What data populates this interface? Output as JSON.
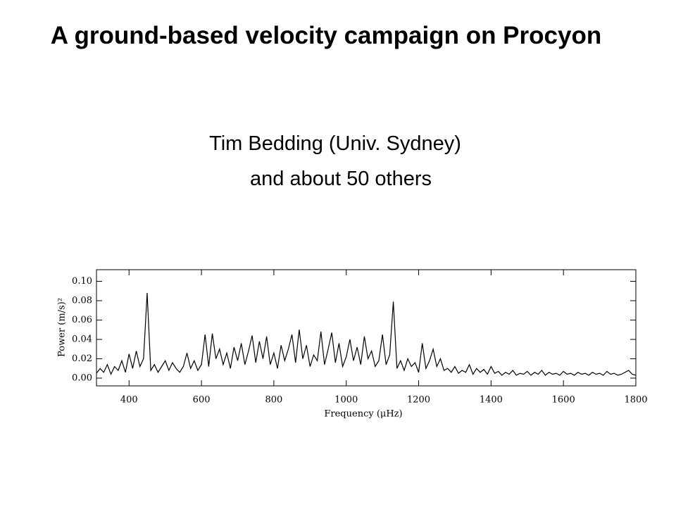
{
  "title": "A ground-based velocity campaign on Procyon",
  "subtitle": [
    "Tim Bedding (Univ. Sydney)",
    "and about 50 others"
  ],
  "chart_data": {
    "type": "line",
    "xlabel": "Frequency (μHz)",
    "ylabel": "Power (m/s)²",
    "color": "#000000",
    "xlim": [
      310,
      1800
    ],
    "ylim": [
      -0.008,
      0.112
    ],
    "xticks": [
      400,
      600,
      800,
      1000,
      1200,
      1400,
      1600,
      1800
    ],
    "yticks": [
      {
        "value": 0,
        "label": "0.00"
      },
      0.02,
      0.04,
      0.06,
      0.08,
      {
        "value": 0.1,
        "label": "0.10"
      }
    ],
    "x": [
      310,
      320,
      330,
      340,
      350,
      360,
      370,
      380,
      390,
      400,
      410,
      420,
      430,
      440,
      450,
      460,
      470,
      480,
      490,
      500,
      510,
      520,
      530,
      540,
      550,
      560,
      570,
      580,
      590,
      600,
      610,
      620,
      630,
      640,
      650,
      660,
      670,
      680,
      690,
      700,
      710,
      720,
      730,
      740,
      750,
      760,
      770,
      780,
      790,
      800,
      810,
      820,
      830,
      840,
      850,
      860,
      870,
      880,
      890,
      900,
      910,
      920,
      930,
      940,
      950,
      960,
      970,
      980,
      990,
      1000,
      1010,
      1020,
      1030,
      1040,
      1050,
      1060,
      1070,
      1080,
      1090,
      1100,
      1110,
      1120,
      1130,
      1140,
      1150,
      1160,
      1170,
      1180,
      1190,
      1200,
      1210,
      1220,
      1230,
      1240,
      1250,
      1260,
      1270,
      1280,
      1290,
      1300,
      1310,
      1320,
      1330,
      1340,
      1350,
      1360,
      1370,
      1380,
      1390,
      1400,
      1410,
      1420,
      1430,
      1440,
      1450,
      1460,
      1470,
      1480,
      1490,
      1500,
      1510,
      1520,
      1530,
      1540,
      1550,
      1560,
      1570,
      1580,
      1590,
      1600,
      1610,
      1620,
      1630,
      1640,
      1650,
      1660,
      1670,
      1680,
      1690,
      1700,
      1710,
      1720,
      1730,
      1740,
      1750,
      1760,
      1770,
      1780,
      1790,
      1800
    ],
    "values": [
      0.005,
      0.01,
      0.006,
      0.014,
      0.004,
      0.012,
      0.008,
      0.018,
      0.006,
      0.025,
      0.01,
      0.028,
      0.012,
      0.02,
      0.088,
      0.008,
      0.014,
      0.006,
      0.012,
      0.018,
      0.008,
      0.016,
      0.01,
      0.006,
      0.012,
      0.026,
      0.01,
      0.018,
      0.008,
      0.014,
      0.045,
      0.012,
      0.046,
      0.02,
      0.03,
      0.014,
      0.026,
      0.01,
      0.032,
      0.018,
      0.036,
      0.014,
      0.028,
      0.044,
      0.016,
      0.038,
      0.02,
      0.043,
      0.014,
      0.026,
      0.01,
      0.034,
      0.018,
      0.03,
      0.045,
      0.016,
      0.05,
      0.02,
      0.034,
      0.012,
      0.024,
      0.018,
      0.048,
      0.014,
      0.03,
      0.047,
      0.016,
      0.036,
      0.012,
      0.022,
      0.04,
      0.018,
      0.032,
      0.014,
      0.043,
      0.02,
      0.028,
      0.012,
      0.018,
      0.045,
      0.014,
      0.024,
      0.079,
      0.01,
      0.018,
      0.008,
      0.02,
      0.012,
      0.016,
      0.006,
      0.036,
      0.01,
      0.018,
      0.03,
      0.012,
      0.02,
      0.008,
      0.01,
      0.006,
      0.012,
      0.005,
      0.008,
      0.006,
      0.014,
      0.004,
      0.01,
      0.006,
      0.009,
      0.004,
      0.012,
      0.005,
      0.007,
      0.003,
      0.006,
      0.004,
      0.008,
      0.003,
      0.005,
      0.004,
      0.007,
      0.003,
      0.006,
      0.004,
      0.008,
      0.003,
      0.006,
      0.004,
      0.005,
      0.003,
      0.007,
      0.004,
      0.005,
      0.003,
      0.006,
      0.004,
      0.005,
      0.003,
      0.006,
      0.004,
      0.005,
      0.003,
      0.007,
      0.004,
      0.005,
      0.003,
      0.004,
      0.006,
      0.008,
      0.004,
      0.003
    ]
  }
}
